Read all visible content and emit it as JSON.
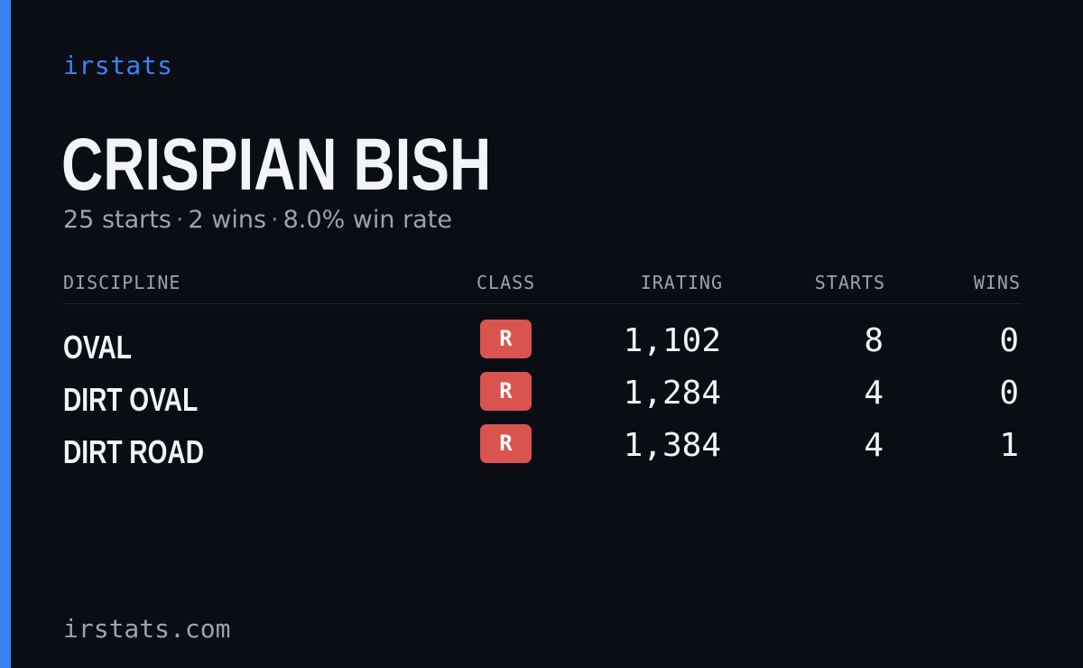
{
  "brand": {
    "label": "irstats",
    "accent_color": "#3b82f6"
  },
  "driver": {
    "name": "CRISPIAN BISH",
    "summary": {
      "starts": "25 starts",
      "wins": "2 wins",
      "win_rate": "8.0% win rate",
      "separator": "·"
    }
  },
  "table": {
    "headers": {
      "discipline": "DISCIPLINE",
      "class": "CLASS",
      "irating": "IRATING",
      "starts": "STARTS",
      "wins": "WINS"
    },
    "rows": [
      {
        "discipline": "OVAL",
        "class": "R",
        "irating": "1,102",
        "starts": "8",
        "wins": "0"
      },
      {
        "discipline": "DIRT OVAL",
        "class": "R",
        "irating": "1,284",
        "starts": "4",
        "wins": "0"
      },
      {
        "discipline": "DIRT ROAD",
        "class": "R",
        "irating": "1,384",
        "starts": "4",
        "wins": "1"
      }
    ],
    "class_badge_color": "#d9534f"
  },
  "footer": {
    "url": "irstats.com"
  },
  "colors": {
    "background": "#0a0d14",
    "text_primary": "#f3f4f6",
    "text_muted": "#9aa3b2"
  }
}
